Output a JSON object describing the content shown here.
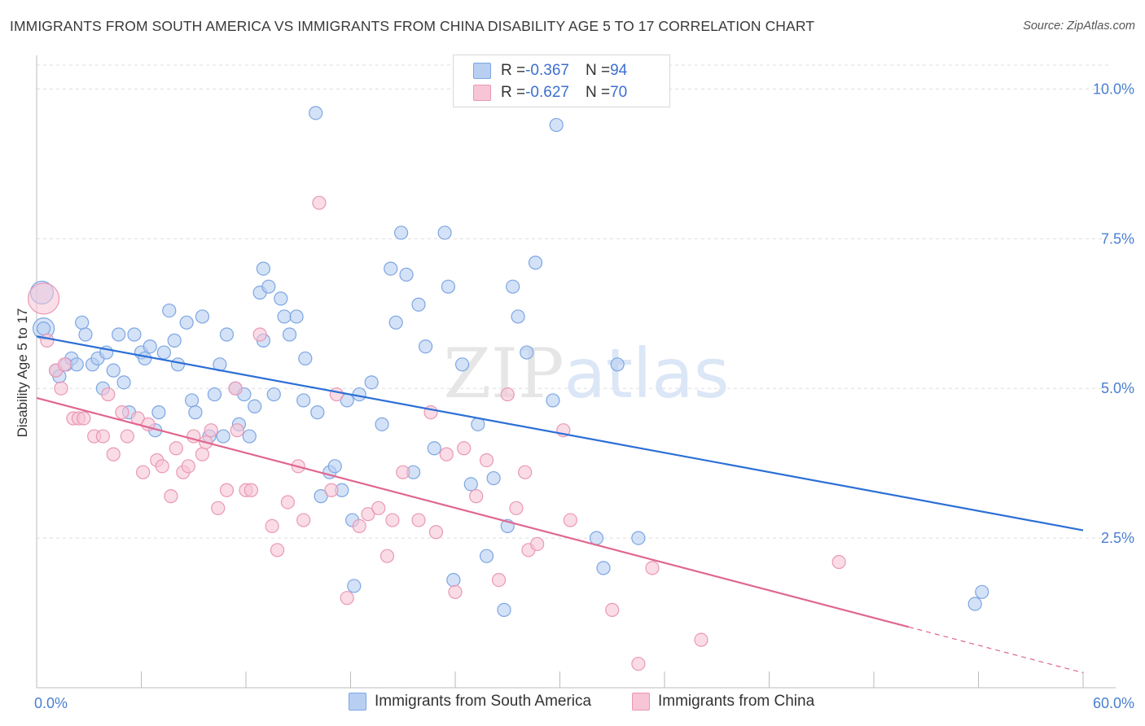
{
  "title": "IMMIGRANTS FROM SOUTH AMERICA VS IMMIGRANTS FROM CHINA DISABILITY AGE 5 TO 17 CORRELATION CHART",
  "source": "Source: ZipAtlas.com",
  "watermark": "ZIPatlas",
  "legend_top": {
    "rows": [
      {
        "r_key": "R = ",
        "r_value": "-0.367",
        "n_key": "N = ",
        "n_value": "94"
      },
      {
        "r_key": "R = ",
        "r_value": "-0.627",
        "n_key": "N = ",
        "n_value": "70"
      }
    ]
  },
  "legend_bottom": {
    "items": [
      "Immigrants from South America",
      "Immigrants from China"
    ]
  },
  "colors": {
    "blue_fill": "#b8cff2",
    "blue_stroke": "#7da6e3",
    "blue_line": "#2c6fd6",
    "pink_fill": "#f7c5d5",
    "pink_stroke": "#ea98b4",
    "pink_line": "#e0668f",
    "tick_label": "#4a7fd0",
    "grid": "#dddddd"
  },
  "chart_data": {
    "type": "scatter",
    "ylabel": "Disability Age 5 to 17",
    "xlim": [
      0,
      60
    ],
    "ylim": [
      0,
      10.4
    ],
    "y_ticks": [
      2.5,
      5.0,
      7.5,
      10.0
    ],
    "y_tick_labels": [
      "2.5%",
      "5.0%",
      "7.5%",
      "10.0%"
    ],
    "x_tick_labels": [
      "0.0%",
      "60.0%"
    ],
    "grid": true,
    "series": [
      {
        "name": "Immigrants from South America",
        "trend": {
          "x": [
            0,
            60
          ],
          "y": [
            5.87,
            2.63
          ]
        },
        "points": [
          [
            0.3,
            6.6
          ],
          [
            0.4,
            6.0
          ],
          [
            1.1,
            5.3
          ],
          [
            1.3,
            5.2
          ],
          [
            1.7,
            5.4
          ],
          [
            2.0,
            5.5
          ],
          [
            2.3,
            5.4
          ],
          [
            2.6,
            6.1
          ],
          [
            2.8,
            5.9
          ],
          [
            3.2,
            5.4
          ],
          [
            3.5,
            5.5
          ],
          [
            3.8,
            5.0
          ],
          [
            4.0,
            5.6
          ],
          [
            4.4,
            5.3
          ],
          [
            4.7,
            5.9
          ],
          [
            5.0,
            5.1
          ],
          [
            5.3,
            4.6
          ],
          [
            5.6,
            5.9
          ],
          [
            6.0,
            5.6
          ],
          [
            6.2,
            5.5
          ],
          [
            6.5,
            5.7
          ],
          [
            6.8,
            4.3
          ],
          [
            7.0,
            4.6
          ],
          [
            7.3,
            5.6
          ],
          [
            7.6,
            6.3
          ],
          [
            7.9,
            5.8
          ],
          [
            8.1,
            5.4
          ],
          [
            8.6,
            6.1
          ],
          [
            8.9,
            4.8
          ],
          [
            9.1,
            4.6
          ],
          [
            9.5,
            6.2
          ],
          [
            9.9,
            4.2
          ],
          [
            10.2,
            4.9
          ],
          [
            10.5,
            5.4
          ],
          [
            10.7,
            4.2
          ],
          [
            10.9,
            5.9
          ],
          [
            11.4,
            5.0
          ],
          [
            11.6,
            4.4
          ],
          [
            11.9,
            4.9
          ],
          [
            12.2,
            4.2
          ],
          [
            12.5,
            4.7
          ],
          [
            12.8,
            6.6
          ],
          [
            13.0,
            7.0
          ],
          [
            13.3,
            6.7
          ],
          [
            13.6,
            4.9
          ],
          [
            14.0,
            6.5
          ],
          [
            14.2,
            6.2
          ],
          [
            14.5,
            5.9
          ],
          [
            14.9,
            6.2
          ],
          [
            15.4,
            5.5
          ],
          [
            16.1,
            4.6
          ],
          [
            16.3,
            3.2
          ],
          [
            16.8,
            3.6
          ],
          [
            17.1,
            3.7
          ],
          [
            17.5,
            3.3
          ],
          [
            17.8,
            4.8
          ],
          [
            18.1,
            2.8
          ],
          [
            18.2,
            1.7
          ],
          [
            18.5,
            4.9
          ],
          [
            19.2,
            5.1
          ],
          [
            19.8,
            4.4
          ],
          [
            20.3,
            7.0
          ],
          [
            20.6,
            6.1
          ],
          [
            20.9,
            7.6
          ],
          [
            21.2,
            6.9
          ],
          [
            21.6,
            3.6
          ],
          [
            21.9,
            6.4
          ],
          [
            22.3,
            5.7
          ],
          [
            22.8,
            4.0
          ],
          [
            23.4,
            7.6
          ],
          [
            23.6,
            6.7
          ],
          [
            23.9,
            1.8
          ],
          [
            24.4,
            5.4
          ],
          [
            24.9,
            3.4
          ],
          [
            25.3,
            4.4
          ],
          [
            25.8,
            2.2
          ],
          [
            26.2,
            3.5
          ],
          [
            27.0,
            2.7
          ],
          [
            26.8,
            1.3
          ],
          [
            27.3,
            6.7
          ],
          [
            27.6,
            6.2
          ],
          [
            28.1,
            5.6
          ],
          [
            28.6,
            7.1
          ],
          [
            29.6,
            4.8
          ],
          [
            29.8,
            9.4
          ],
          [
            32.1,
            2.5
          ],
          [
            32.5,
            2.0
          ],
          [
            33.3,
            5.4
          ],
          [
            34.5,
            2.5
          ],
          [
            15.3,
            4.8
          ],
          [
            13.0,
            5.8
          ],
          [
            16.0,
            9.6
          ],
          [
            53.8,
            1.4
          ],
          [
            54.2,
            1.6
          ]
        ]
      },
      {
        "name": "Immigrants from China",
        "trend": {
          "x": [
            0,
            60
          ],
          "y": [
            4.84,
            0.25
          ]
        },
        "points": [
          [
            0.4,
            6.5
          ],
          [
            0.6,
            5.8
          ],
          [
            1.1,
            5.3
          ],
          [
            1.4,
            5.0
          ],
          [
            1.6,
            5.4
          ],
          [
            2.1,
            4.5
          ],
          [
            2.4,
            4.5
          ],
          [
            2.7,
            4.5
          ],
          [
            3.3,
            4.2
          ],
          [
            3.8,
            4.2
          ],
          [
            4.1,
            4.9
          ],
          [
            4.4,
            3.9
          ],
          [
            4.9,
            4.6
          ],
          [
            5.2,
            4.2
          ],
          [
            5.8,
            4.5
          ],
          [
            6.1,
            3.6
          ],
          [
            6.4,
            4.4
          ],
          [
            6.9,
            3.8
          ],
          [
            7.2,
            3.7
          ],
          [
            7.7,
            3.2
          ],
          [
            8.0,
            4.0
          ],
          [
            8.4,
            3.6
          ],
          [
            8.7,
            3.7
          ],
          [
            9.0,
            4.2
          ],
          [
            9.5,
            3.9
          ],
          [
            10.0,
            4.3
          ],
          [
            10.4,
            3.0
          ],
          [
            10.9,
            3.3
          ],
          [
            11.4,
            5.0
          ],
          [
            12.0,
            3.3
          ],
          [
            12.3,
            3.3
          ],
          [
            12.8,
            5.9
          ],
          [
            13.5,
            2.7
          ],
          [
            13.8,
            2.3
          ],
          [
            14.4,
            3.1
          ],
          [
            15.0,
            3.7
          ],
          [
            15.3,
            2.8
          ],
          [
            16.2,
            8.1
          ],
          [
            16.9,
            3.3
          ],
          [
            17.2,
            4.9
          ],
          [
            17.8,
            1.5
          ],
          [
            18.5,
            2.7
          ],
          [
            19.0,
            2.9
          ],
          [
            19.6,
            3.0
          ],
          [
            20.1,
            2.2
          ],
          [
            20.4,
            2.8
          ],
          [
            21.0,
            3.6
          ],
          [
            21.9,
            2.8
          ],
          [
            22.6,
            4.6
          ],
          [
            22.9,
            2.6
          ],
          [
            23.5,
            3.9
          ],
          [
            24.0,
            1.6
          ],
          [
            24.5,
            4.0
          ],
          [
            25.2,
            3.2
          ],
          [
            25.8,
            3.8
          ],
          [
            26.5,
            1.8
          ],
          [
            27.0,
            4.9
          ],
          [
            27.5,
            3.0
          ],
          [
            28.2,
            2.3
          ],
          [
            28.7,
            2.4
          ],
          [
            30.2,
            4.3
          ],
          [
            30.6,
            2.8
          ],
          [
            33.0,
            1.3
          ],
          [
            34.5,
            0.4
          ],
          [
            35.3,
            2.0
          ],
          [
            38.1,
            0.8
          ],
          [
            46.0,
            2.1
          ],
          [
            28.0,
            3.6
          ],
          [
            9.7,
            4.1
          ],
          [
            11.5,
            4.3
          ]
        ]
      }
    ]
  }
}
